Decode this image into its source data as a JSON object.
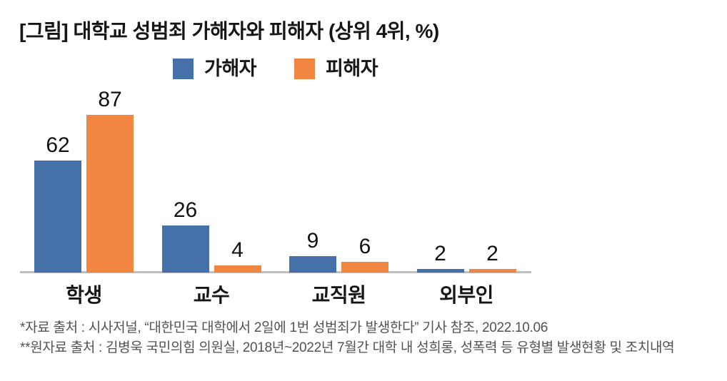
{
  "title": "[그림] 대학교 성범죄 가해자와 피해자 (상위 4위, %)",
  "legend": [
    {
      "label": "가해자",
      "color": "#4570A8"
    },
    {
      "label": "피해자",
      "color": "#F08642"
    }
  ],
  "chart_data": {
    "type": "bar",
    "title": "[그림] 대학교 성범죄 가해자와 피해자 (상위 4위, %)",
    "unit": "%",
    "categories": [
      "학생",
      "교수",
      "교직원",
      "외부인"
    ],
    "series": [
      {
        "name": "가해자",
        "color": "#4570A8",
        "values": [
          62,
          26,
          9,
          2
        ]
      },
      {
        "name": "피해자",
        "color": "#F08642",
        "values": [
          87,
          4,
          6,
          2
        ]
      }
    ],
    "value_labels": true,
    "grid": false,
    "legend_position": "top",
    "ylim": [
      0,
      90
    ],
    "axis_color": "#BFBFBF"
  },
  "footnotes": [
    "*자료 출처 : 시사저널, “대한민국 대학에서 2일에 1번 성범죄가 발생한다” 기사 참조, 2022.10.06",
    "**원자료 출처 : 김병욱 국민의힘 의원실, 2018년~2022년 7월간 대학 내 성희롱, 성폭력 등 유형별 발생현황 및 조치내역"
  ]
}
